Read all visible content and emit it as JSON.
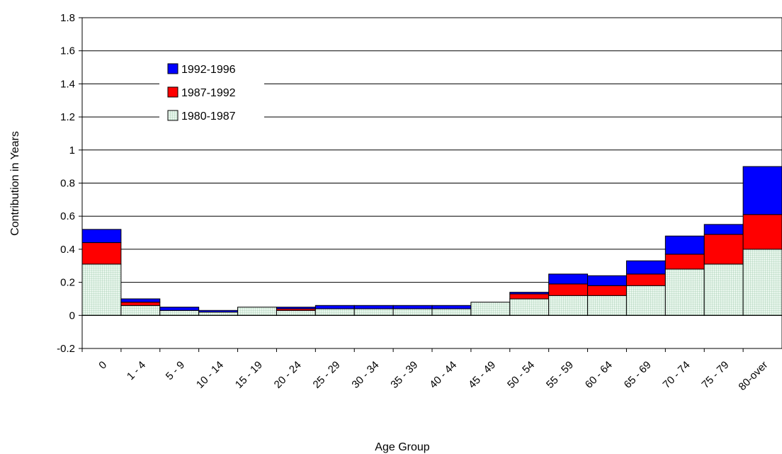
{
  "chart_data": {
    "type": "bar",
    "stacked": true,
    "title": "",
    "xlabel": "Age Group",
    "ylabel": "Contribution in Years",
    "ylim": [
      -0.2,
      1.8
    ],
    "yticks": [
      "1.8",
      "1.6",
      "1.4",
      "1.2",
      "1",
      "0.8",
      "0.6",
      "0.4",
      "0.2",
      "0",
      "-0.2"
    ],
    "ytick_values": [
      1.8,
      1.6,
      1.4,
      1.2,
      1.0,
      0.8,
      0.6,
      0.4,
      0.2,
      0,
      -0.2
    ],
    "grid": true,
    "legend_position": "top-left",
    "categories": [
      "0",
      "1 - 4",
      "5 - 9",
      "10 - 14",
      "15 - 19",
      "20 - 24",
      "25 - 29",
      "30 - 34",
      "35 - 39",
      "40 - 44",
      "45 - 49",
      "50 - 54",
      "55 - 59",
      "60 - 64",
      "65 - 69",
      "70 - 74",
      "75 - 79",
      "80-over"
    ],
    "series": [
      {
        "name": "1980-1987",
        "color": "#e8f5ec",
        "pattern": "grid",
        "values": [
          0.31,
          0.06,
          0.03,
          0.02,
          0.05,
          0.03,
          0.04,
          0.04,
          0.04,
          0.04,
          0.08,
          0.1,
          0.12,
          0.12,
          0.18,
          0.28,
          0.31,
          0.4
        ]
      },
      {
        "name": "1987-1992",
        "color": "#ff0000",
        "values": [
          0.13,
          0.02,
          0.0,
          0.0,
          0.0,
          0.01,
          0.0,
          0.0,
          0.0,
          0.0,
          0.0,
          0.03,
          0.07,
          0.06,
          0.07,
          0.09,
          0.18,
          0.21
        ]
      },
      {
        "name": "1992-1996",
        "color": "#0000ff",
        "values": [
          0.08,
          0.02,
          0.02,
          0.01,
          0.0,
          0.01,
          0.02,
          0.02,
          0.02,
          0.02,
          0.0,
          0.01,
          0.06,
          0.06,
          0.08,
          0.11,
          0.06,
          0.29
        ]
      }
    ],
    "legend_order": [
      "1992-1996",
      "1987-1992",
      "1980-1987"
    ]
  }
}
